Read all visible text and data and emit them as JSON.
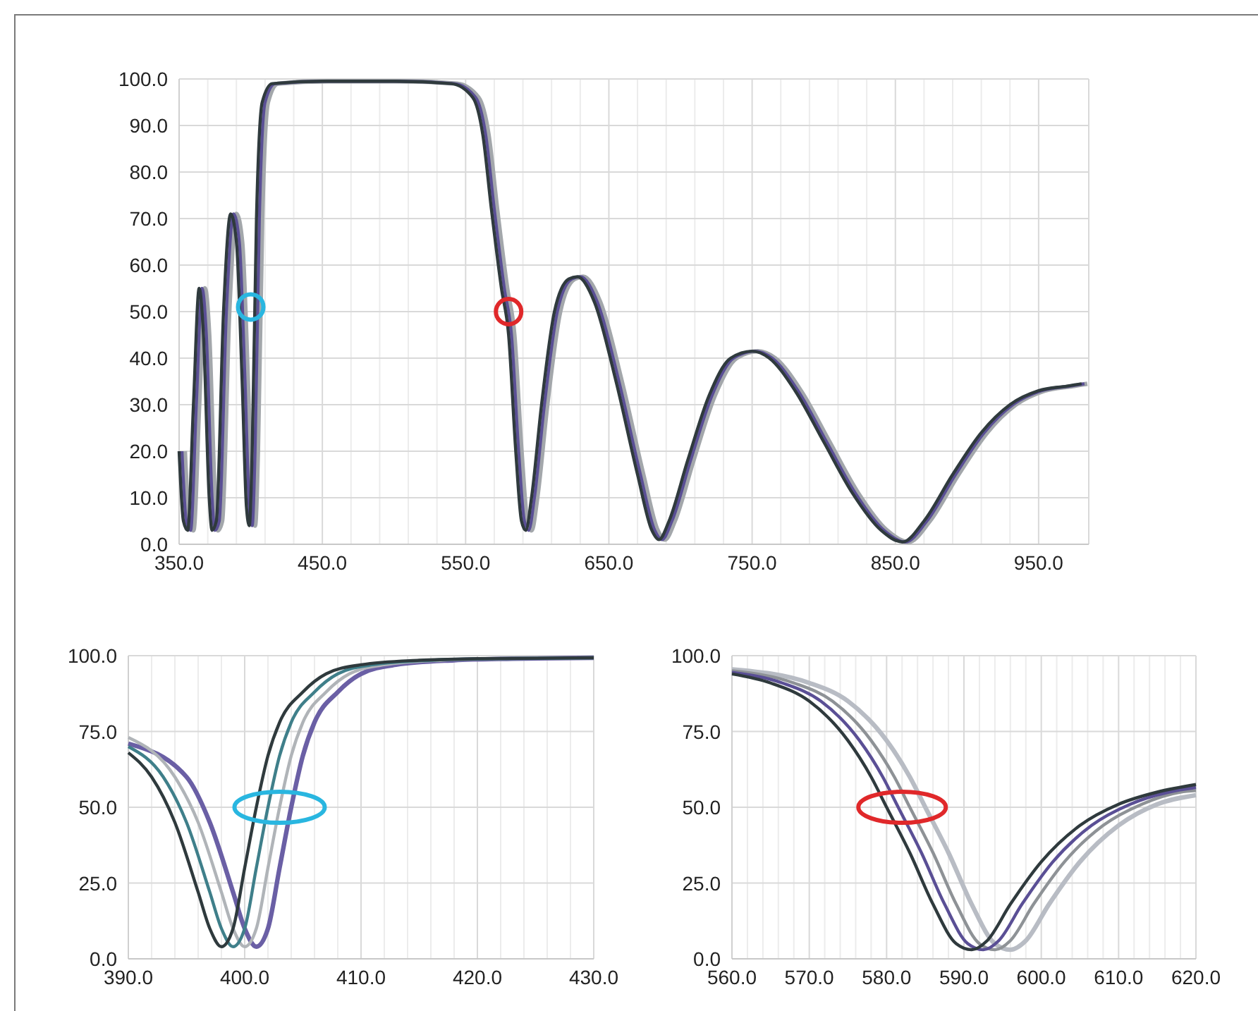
{
  "chart_data": [
    {
      "type": "line",
      "xlim": [
        350,
        985
      ],
      "ylim": [
        0,
        100
      ],
      "grid": true,
      "xticks": [
        {
          "value": 350,
          "label": "350.0"
        },
        {
          "value": 450,
          "label": "450.0"
        },
        {
          "value": 550,
          "label": "550.0"
        },
        {
          "value": 650,
          "label": "650.0"
        },
        {
          "value": 750,
          "label": "750.0"
        },
        {
          "value": 850,
          "label": "850.0"
        },
        {
          "value": 950,
          "label": "950.0"
        }
      ],
      "yticks": [
        {
          "value": 0,
          "label": "0.0"
        },
        {
          "value": 10,
          "label": "10.0"
        },
        {
          "value": 20,
          "label": "20.0"
        },
        {
          "value": 30,
          "label": "30.0"
        },
        {
          "value": 40,
          "label": "40.0"
        },
        {
          "value": 50,
          "label": "50.0"
        },
        {
          "value": 60,
          "label": "60.0"
        },
        {
          "value": 70,
          "label": "70.0"
        },
        {
          "value": 80,
          "label": "80.0"
        },
        {
          "value": 90,
          "label": "90.0"
        },
        {
          "value": 100,
          "label": "100.0"
        }
      ],
      "series": [
        {
          "color": "#a3a7ab",
          "x": [
            354,
            357,
            360,
            364,
            368,
            371,
            375,
            377,
            380,
            385,
            390,
            394,
            398,
            401,
            403,
            405,
            408,
            412,
            419,
            454,
            504,
            544,
            559,
            566,
            572,
            579,
            584,
            589,
            593,
            596,
            600,
            607,
            616,
            626,
            632,
            644,
            659,
            674,
            684,
            689,
            696,
            709,
            724,
            739,
            754,
            766,
            784,
            804,
            824,
            844,
            859,
            874,
            894,
            914,
            934,
            954,
            974,
            984
          ],
          "values": [
            20,
            5,
            3,
            30,
            55,
            45,
            10,
            3,
            5,
            50,
            71,
            65,
            35,
            8,
            4,
            20,
            70,
            95,
            99,
            99.5,
            99.5,
            99,
            96,
            88,
            72,
            55,
            45,
            20,
            5,
            3,
            10,
            30,
            50,
            57,
            57.5,
            52,
            35,
            15,
            3,
            1,
            5,
            18,
            32,
            40,
            41.5,
            40,
            33,
            22,
            11,
            3,
            0.5,
            5,
            15,
            24,
            30,
            33,
            34,
            34.5
          ]
        },
        {
          "color": "#5a4f95",
          "x": [
            352,
            355,
            358,
            362,
            366,
            369,
            373,
            375,
            378,
            383,
            388,
            392,
            396,
            399,
            401,
            403,
            406,
            410,
            417,
            452,
            502,
            542,
            557,
            564,
            570,
            577,
            582,
            587,
            591,
            594,
            598,
            605,
            614,
            624,
            630,
            642,
            657,
            672,
            682,
            687,
            694,
            707,
            722,
            737,
            752,
            764,
            782,
            802,
            822,
            842,
            857,
            872,
            892,
            912,
            932,
            952,
            972,
            982
          ],
          "values": [
            20,
            5,
            3,
            30,
            55,
            45,
            10,
            3,
            5,
            50,
            71,
            65,
            35,
            8,
            4,
            20,
            70,
            95,
            99,
            99.5,
            99.5,
            99,
            96,
            88,
            72,
            55,
            45,
            20,
            5,
            3,
            10,
            30,
            50,
            57,
            57.5,
            52,
            35,
            15,
            3,
            1,
            5,
            18,
            32,
            40,
            41.5,
            40,
            33,
            22,
            11,
            3,
            0.5,
            5,
            15,
            24,
            30,
            33,
            34,
            34.5
          ]
        },
        {
          "color": "#2f3a3d",
          "x": [
            350,
            353,
            356,
            360,
            364,
            367,
            371,
            373,
            376,
            381,
            386,
            390,
            394,
            397,
            399,
            401,
            404,
            408,
            415,
            450,
            500,
            540,
            555,
            562,
            568,
            575,
            580,
            585,
            589,
            592,
            596,
            603,
            612,
            622,
            628,
            640,
            655,
            670,
            680,
            685,
            692,
            705,
            720,
            735,
            750,
            762,
            780,
            800,
            820,
            840,
            855,
            870,
            890,
            910,
            930,
            950,
            970,
            980
          ],
          "values": [
            20,
            5,
            3,
            30,
            55,
            45,
            10,
            3,
            5,
            50,
            71,
            65,
            35,
            8,
            4,
            20,
            70,
            95,
            99,
            99.5,
            99.5,
            99,
            96,
            88,
            72,
            55,
            45,
            20,
            5,
            3,
            10,
            30,
            50,
            57,
            57.5,
            52,
            35,
            15,
            3,
            1,
            5,
            18,
            32,
            40,
            41.5,
            40,
            33,
            22,
            11,
            3,
            0.5,
            5,
            15,
            24,
            30,
            33,
            34,
            34.5
          ]
        }
      ]
    },
    {
      "type": "line",
      "xlim": [
        390,
        430
      ],
      "ylim": [
        0,
        100
      ],
      "grid": true,
      "xticks": [
        {
          "value": 390,
          "label": "390.0"
        },
        {
          "value": 400,
          "label": "400.0"
        },
        {
          "value": 410,
          "label": "410.0"
        },
        {
          "value": 420,
          "label": "420.0"
        },
        {
          "value": 430,
          "label": "430.0"
        }
      ],
      "yticks": [
        {
          "value": 0,
          "label": "0.0"
        },
        {
          "value": 25,
          "label": "25.0"
        },
        {
          "value": 50,
          "label": "50.0"
        },
        {
          "value": 75,
          "label": "75.0"
        },
        {
          "value": 100,
          "label": "100.0"
        }
      ],
      "series": [
        {
          "color": "#6a5fa5",
          "x": [
            390,
            395,
            397,
            399,
            400,
            401,
            402,
            403,
            404,
            405,
            406,
            408,
            410,
            413,
            418,
            423,
            430
          ],
          "values": [
            71,
            60,
            45,
            22,
            10,
            4,
            10,
            30,
            50,
            67,
            78,
            88,
            94,
            97,
            98.5,
            99,
            99.3
          ]
        },
        {
          "color": "#b0b4b8",
          "x": [
            390,
            394,
            396,
            398,
            399,
            400,
            401,
            402,
            403,
            404,
            405,
            407,
            409,
            412,
            417,
            422,
            430
          ],
          "values": [
            73,
            60,
            45,
            22,
            10,
            4,
            10,
            30,
            50,
            67,
            78,
            88,
            94,
            97,
            98.5,
            99,
            99.3
          ]
        },
        {
          "color": "#3f7f8a",
          "x": [
            390,
            393,
            395,
            397,
            398,
            399,
            400,
            401,
            402,
            403,
            404,
            406,
            408,
            411,
            416,
            421,
            430
          ],
          "values": [
            70,
            60,
            45,
            22,
            10,
            4,
            10,
            30,
            50,
            67,
            78,
            88,
            94,
            97,
            98.5,
            99,
            99.3
          ]
        },
        {
          "color": "#2f3a3d",
          "x": [
            390,
            392,
            394,
            396,
            397,
            398,
            399,
            400,
            401,
            402,
            403,
            405,
            407,
            410,
            415,
            420,
            430
          ],
          "values": [
            68,
            60,
            45,
            22,
            10,
            4,
            10,
            30,
            50,
            67,
            78,
            88,
            94,
            97,
            98.5,
            99,
            99.3
          ]
        }
      ]
    },
    {
      "type": "line",
      "xlim": [
        560,
        620
      ],
      "ylim": [
        0,
        100
      ],
      "grid": true,
      "xticks": [
        {
          "value": 560,
          "label": "560.0"
        },
        {
          "value": 570,
          "label": "570.0"
        },
        {
          "value": 580,
          "label": "580.0"
        },
        {
          "value": 590,
          "label": "590.0"
        },
        {
          "value": 600,
          "label": "600.0"
        },
        {
          "value": 610,
          "label": "610.0"
        },
        {
          "value": 620,
          "label": "620.0"
        }
      ],
      "yticks": [
        {
          "value": 0,
          "label": "0.0"
        },
        {
          "value": 25,
          "label": "25.0"
        },
        {
          "value": 50,
          "label": "50.0"
        },
        {
          "value": 75,
          "label": "75.0"
        },
        {
          "value": 100,
          "label": "100.0"
        }
      ],
      "series": [
        {
          "color": "#b8bcc4",
          "x": [
            560,
            570,
            575,
            580,
            583,
            585,
            588,
            591,
            594,
            596,
            598,
            601,
            605,
            610,
            615,
            620
          ],
          "values": [
            95.5,
            91,
            85,
            72,
            60,
            50,
            35,
            18,
            5,
            3,
            6,
            18,
            32,
            44,
            51,
            54
          ]
        },
        {
          "color": "#8e9296",
          "x": [
            560,
            568,
            573,
            578,
            581,
            583,
            586,
            589,
            592,
            594,
            596,
            599,
            603,
            608,
            613,
            618,
            620
          ],
          "values": [
            95,
            91,
            85,
            72,
            60,
            50,
            35,
            18,
            5,
            3,
            6,
            18,
            32,
            44,
            51,
            55,
            55.5
          ]
        },
        {
          "color": "#5a4f95",
          "x": [
            560,
            566.5,
            571.5,
            576.5,
            579.5,
            581.5,
            584.5,
            587.5,
            590.5,
            592.5,
            594.5,
            597.5,
            601.5,
            606.5,
            611.5,
            616.5,
            620
          ],
          "values": [
            94.5,
            91,
            85,
            72,
            60,
            50,
            35,
            18,
            5,
            3,
            6,
            18,
            32,
            44,
            51,
            55,
            56.5
          ]
        },
        {
          "color": "#2f3a3d",
          "x": [
            560,
            565,
            570,
            575,
            578,
            580,
            583,
            586,
            589,
            591,
            593,
            596,
            600,
            605,
            610,
            615,
            620
          ],
          "values": [
            94,
            91,
            85,
            72,
            60,
            50,
            35,
            18,
            5,
            3,
            6,
            18,
            32,
            44,
            51,
            55,
            57.5
          ]
        }
      ]
    }
  ]
}
